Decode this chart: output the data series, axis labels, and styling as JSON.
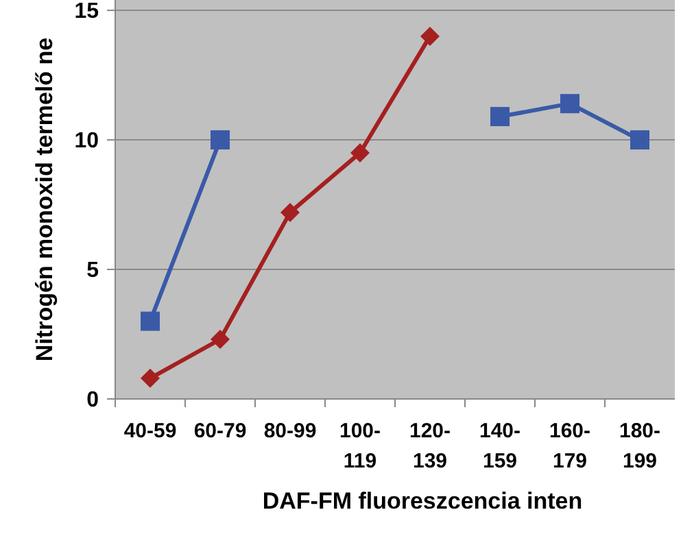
{
  "chart_data": {
    "type": "line",
    "xlabel": "DAF-FM fluoreszcencia inten",
    "ylabel": "Nitrogén monoxid termelő ne",
    "categories": [
      "40-59",
      "60-79",
      "80-99",
      "100-119",
      "120-139",
      "140-159",
      "160-179",
      "180-199"
    ],
    "series": [
      {
        "color": "#3a5aa8",
        "marker": "square",
        "values": [
          3.0,
          10.0,
          null,
          null,
          null,
          10.9,
          11.4,
          10.0
        ]
      },
      {
        "color": "#a52020",
        "marker": "diamond",
        "values": [
          0.8,
          2.3,
          7.2,
          9.5,
          14.0,
          null,
          null,
          null
        ]
      }
    ],
    "ylim": [
      0,
      15.4
    ],
    "yticks": [
      0,
      5,
      10,
      15
    ],
    "grid": "y",
    "line_style": "solid"
  }
}
